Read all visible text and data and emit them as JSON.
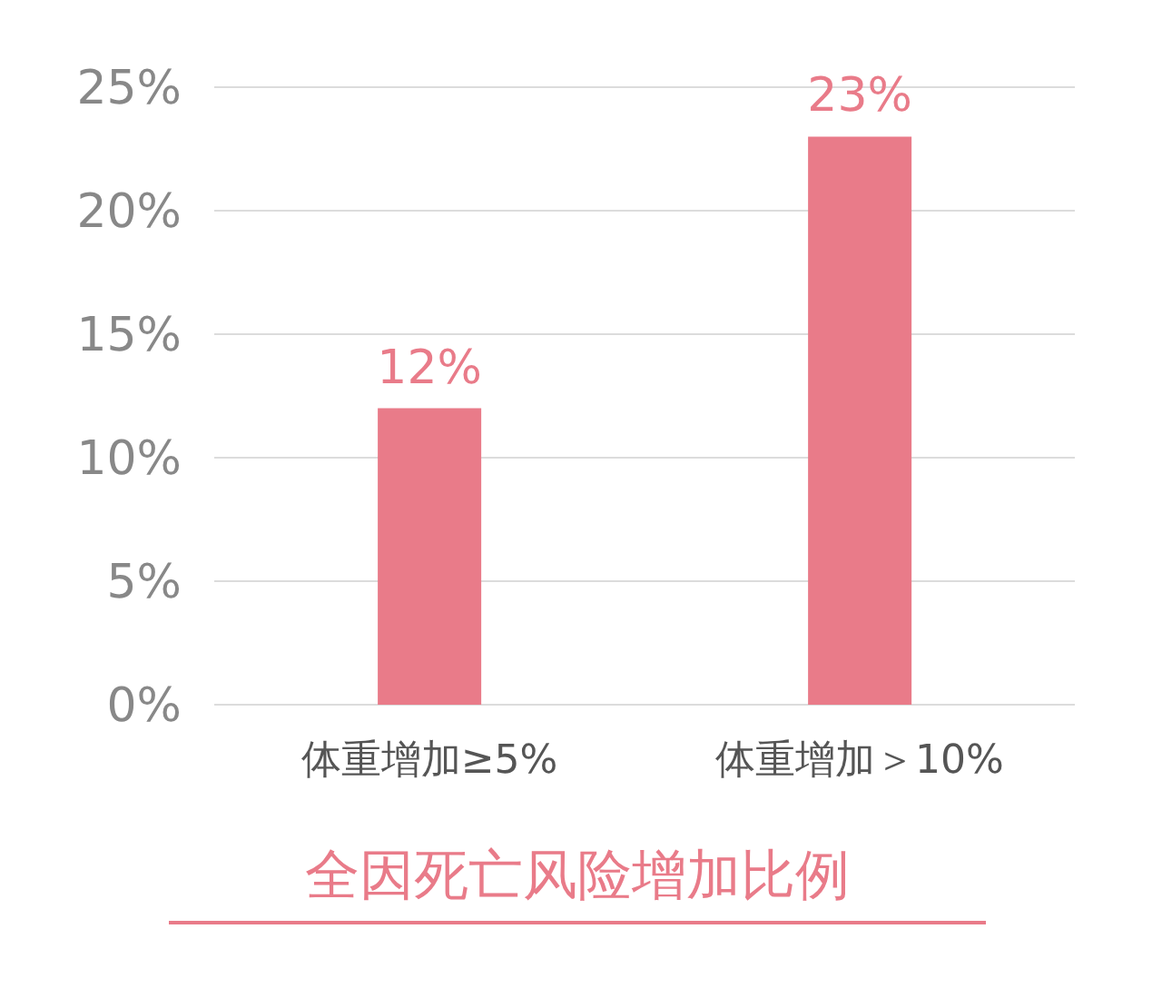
{
  "chart_data": {
    "type": "bar",
    "title": "全因死亡风险增加比例",
    "categories": [
      "体重增加≥5%",
      "体重增加＞10%"
    ],
    "values": [
      12,
      23
    ],
    "color": "#e97b89",
    "value_labels": [
      "12%",
      "23%"
    ],
    "ylim": [
      0,
      25
    ],
    "yticks": [
      {
        "value": 0,
        "label": "0%"
      },
      {
        "value": 5,
        "label": "5%"
      },
      {
        "value": 10,
        "label": "10%"
      },
      {
        "value": 15,
        "label": "15%"
      },
      {
        "value": 20,
        "label": "20%"
      },
      {
        "value": 25,
        "label": "25%"
      }
    ],
    "grid": "y"
  }
}
